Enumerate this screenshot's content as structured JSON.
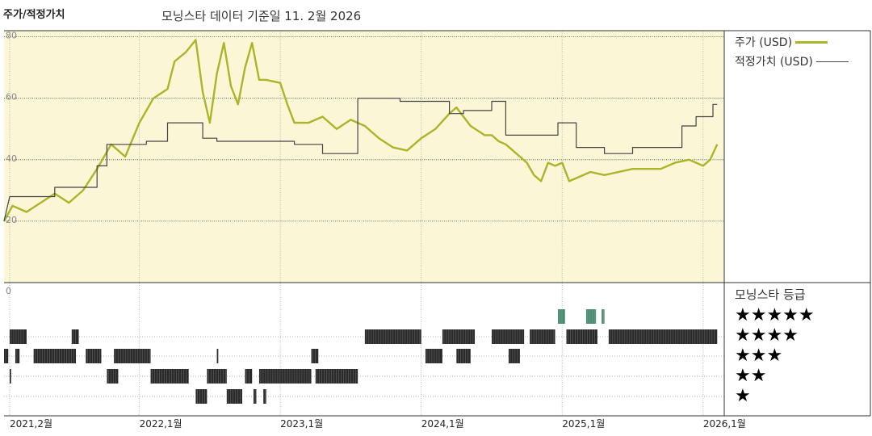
{
  "header": {
    "title": "주가/적정가치",
    "subtitle": "모닝스타 데이터 기준일 11. 2월 2026"
  },
  "legend": {
    "price_label": "주가 (USD)",
    "fair_label": "적정가치 (USD)",
    "price_color": "#aab52a",
    "fair_color": "#444444"
  },
  "rating_panel": {
    "title": "모닝스타 등급",
    "stars": [
      "★★★★★",
      "★★★★",
      "★★★",
      "★★",
      "★"
    ],
    "rating_colors": {
      "5": "#4a8a70",
      "default": "#2a2a2a"
    }
  },
  "chart_data": {
    "type": "line",
    "plot_background": "#faf6d6",
    "y_ticks": [
      "80",
      "60",
      "40",
      "20"
    ],
    "y_values": [
      80,
      60,
      40,
      20
    ],
    "ylim": [
      0,
      82
    ],
    "rating_zero_label": "0",
    "x_ticks": [
      "2021,2월",
      "2022,1월",
      "2023,1월",
      "2024,1월",
      "2025,1월",
      "2026,1월"
    ],
    "x_tick_dates": [
      2021.08,
      2022.0,
      2023.0,
      2024.0,
      2025.0,
      2026.0
    ],
    "xlim": [
      2021.04,
      2026.15
    ],
    "series": [
      {
        "name": "주가 (USD)",
        "points": [
          [
            2021.04,
            20
          ],
          [
            2021.1,
            25
          ],
          [
            2021.2,
            23
          ],
          [
            2021.3,
            26
          ],
          [
            2021.4,
            29
          ],
          [
            2021.5,
            26
          ],
          [
            2021.6,
            30
          ],
          [
            2021.7,
            37
          ],
          [
            2021.8,
            45
          ],
          [
            2021.9,
            41
          ],
          [
            2022.0,
            52
          ],
          [
            2022.1,
            60
          ],
          [
            2022.2,
            63
          ],
          [
            2022.25,
            72
          ],
          [
            2022.33,
            75
          ],
          [
            2022.4,
            79
          ],
          [
            2022.45,
            62
          ],
          [
            2022.5,
            52
          ],
          [
            2022.55,
            68
          ],
          [
            2022.6,
            78
          ],
          [
            2022.65,
            64
          ],
          [
            2022.7,
            58
          ],
          [
            2022.75,
            70
          ],
          [
            2022.8,
            78
          ],
          [
            2022.85,
            66
          ],
          [
            2022.9,
            66
          ],
          [
            2023.0,
            65
          ],
          [
            2023.05,
            58
          ],
          [
            2023.1,
            52
          ],
          [
            2023.15,
            52
          ],
          [
            2023.2,
            52
          ],
          [
            2023.3,
            54
          ],
          [
            2023.4,
            50
          ],
          [
            2023.5,
            53
          ],
          [
            2023.6,
            51
          ],
          [
            2023.7,
            47
          ],
          [
            2023.8,
            44
          ],
          [
            2023.9,
            43
          ],
          [
            2024.0,
            47
          ],
          [
            2024.1,
            50
          ],
          [
            2024.2,
            55
          ],
          [
            2024.25,
            57
          ],
          [
            2024.35,
            51
          ],
          [
            2024.45,
            48
          ],
          [
            2024.5,
            48
          ],
          [
            2024.55,
            46
          ],
          [
            2024.6,
            45
          ],
          [
            2024.7,
            41
          ],
          [
            2024.75,
            39
          ],
          [
            2024.8,
            35
          ],
          [
            2024.85,
            33
          ],
          [
            2024.9,
            39
          ],
          [
            2024.95,
            38
          ],
          [
            2025.0,
            39
          ],
          [
            2025.05,
            33
          ],
          [
            2025.1,
            34
          ],
          [
            2025.2,
            36
          ],
          [
            2025.3,
            35
          ],
          [
            2025.4,
            36
          ],
          [
            2025.5,
            37
          ],
          [
            2025.6,
            37
          ],
          [
            2025.7,
            37
          ],
          [
            2025.8,
            39
          ],
          [
            2025.9,
            40
          ],
          [
            2026.0,
            38
          ],
          [
            2026.05,
            40
          ],
          [
            2026.1,
            45
          ]
        ]
      },
      {
        "name": "적정가치 (USD)",
        "points": [
          [
            2021.04,
            20
          ],
          [
            2021.08,
            28
          ],
          [
            2021.4,
            28
          ],
          [
            2021.4,
            31
          ],
          [
            2021.7,
            31
          ],
          [
            2021.7,
            38
          ],
          [
            2021.77,
            38
          ],
          [
            2021.77,
            45
          ],
          [
            2022.05,
            45
          ],
          [
            2022.05,
            46
          ],
          [
            2022.2,
            46
          ],
          [
            2022.2,
            52
          ],
          [
            2022.45,
            52
          ],
          [
            2022.45,
            47
          ],
          [
            2022.55,
            47
          ],
          [
            2022.55,
            46
          ],
          [
            2023.1,
            46
          ],
          [
            2023.1,
            45
          ],
          [
            2023.3,
            45
          ],
          [
            2023.3,
            42
          ],
          [
            2023.55,
            42
          ],
          [
            2023.55,
            60
          ],
          [
            2023.85,
            60
          ],
          [
            2023.85,
            59
          ],
          [
            2024.2,
            59
          ],
          [
            2024.2,
            55
          ],
          [
            2024.3,
            55
          ],
          [
            2024.3,
            56
          ],
          [
            2024.5,
            56
          ],
          [
            2024.5,
            59
          ],
          [
            2024.6,
            59
          ],
          [
            2024.6,
            48
          ],
          [
            2024.97,
            48
          ],
          [
            2024.97,
            52
          ],
          [
            2025.1,
            52
          ],
          [
            2025.1,
            44
          ],
          [
            2025.3,
            44
          ],
          [
            2025.3,
            42
          ],
          [
            2025.5,
            42
          ],
          [
            2025.5,
            44
          ],
          [
            2025.85,
            44
          ],
          [
            2025.85,
            51
          ],
          [
            2025.95,
            51
          ],
          [
            2025.95,
            54
          ],
          [
            2026.07,
            54
          ],
          [
            2026.07,
            58
          ],
          [
            2026.1,
            58
          ]
        ]
      }
    ],
    "ratings": [
      {
        "stars": 5,
        "ranges": [
          [
            2024.97,
            2025.02
          ],
          [
            2025.17,
            2025.24
          ],
          [
            2025.28,
            2025.3
          ]
        ]
      },
      {
        "stars": 4,
        "ranges": [
          [
            2021.08,
            2021.2
          ],
          [
            2021.52,
            2021.57
          ],
          [
            2023.6,
            2024.0
          ],
          [
            2024.15,
            2024.38
          ],
          [
            2024.5,
            2024.73
          ],
          [
            2024.77,
            2024.95
          ],
          [
            2025.03,
            2025.25
          ],
          [
            2025.33,
            2026.1
          ]
        ]
      },
      {
        "stars": 3,
        "ranges": [
          [
            2021.04,
            2021.07
          ],
          [
            2021.12,
            2021.15
          ],
          [
            2021.25,
            2021.55
          ],
          [
            2021.62,
            2021.73
          ],
          [
            2021.82,
            2022.08
          ],
          [
            2022.55,
            2022.56
          ],
          [
            2023.22,
            2023.27
          ],
          [
            2024.03,
            2024.15
          ],
          [
            2024.25,
            2024.35
          ],
          [
            2024.62,
            2024.7
          ]
        ]
      },
      {
        "stars": 2,
        "ranges": [
          [
            2021.08,
            2021.09
          ],
          [
            2021.77,
            2021.85
          ],
          [
            2022.08,
            2022.35
          ],
          [
            2022.48,
            2022.62
          ],
          [
            2022.75,
            2022.8
          ],
          [
            2022.85,
            2023.22
          ],
          [
            2023.25,
            2023.55
          ]
        ]
      },
      {
        "stars": 1,
        "ranges": [
          [
            2022.4,
            2022.48
          ],
          [
            2022.62,
            2022.73
          ],
          [
            2022.81,
            2022.83
          ],
          [
            2022.88,
            2022.9
          ]
        ]
      }
    ]
  }
}
